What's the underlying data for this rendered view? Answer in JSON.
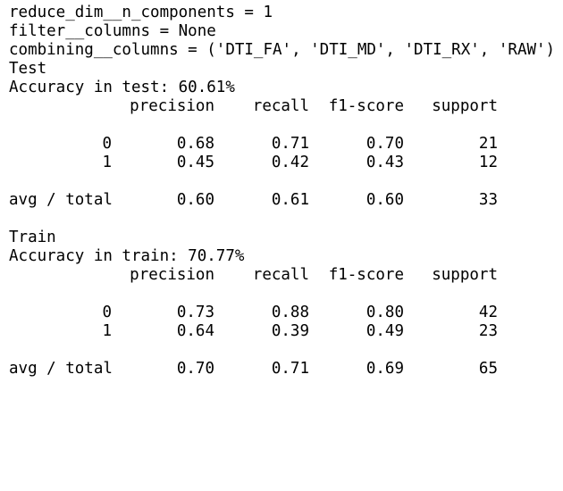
{
  "params": [
    "reduce_dim__n_components = 1",
    "filter__columns = None",
    "combining__columns = ('DTI_FA', 'DTI_MD', 'DTI_RX', 'RAW')"
  ],
  "sections": [
    {
      "name": "Test",
      "accuracy_line": "Accuracy in test: 60.61%",
      "headers": [
        "precision",
        "recall",
        "f1-score",
        "support"
      ],
      "rows": [
        {
          "label": "0",
          "precision": "0.68",
          "recall": "0.71",
          "f1": "0.70",
          "support": "21"
        },
        {
          "label": "1",
          "precision": "0.45",
          "recall": "0.42",
          "f1": "0.43",
          "support": "12"
        }
      ],
      "total": {
        "label": "avg / total",
        "precision": "0.60",
        "recall": "0.61",
        "f1": "0.60",
        "support": "33"
      }
    },
    {
      "name": "Train",
      "accuracy_line": "Accuracy in train: 70.77%",
      "headers": [
        "precision",
        "recall",
        "f1-score",
        "support"
      ],
      "rows": [
        {
          "label": "0",
          "precision": "0.73",
          "recall": "0.88",
          "f1": "0.80",
          "support": "42"
        },
        {
          "label": "1",
          "precision": "0.64",
          "recall": "0.39",
          "f1": "0.49",
          "support": "23"
        }
      ],
      "total": {
        "label": "avg / total",
        "precision": "0.70",
        "recall": "0.71",
        "f1": "0.69",
        "support": "65"
      }
    }
  ]
}
